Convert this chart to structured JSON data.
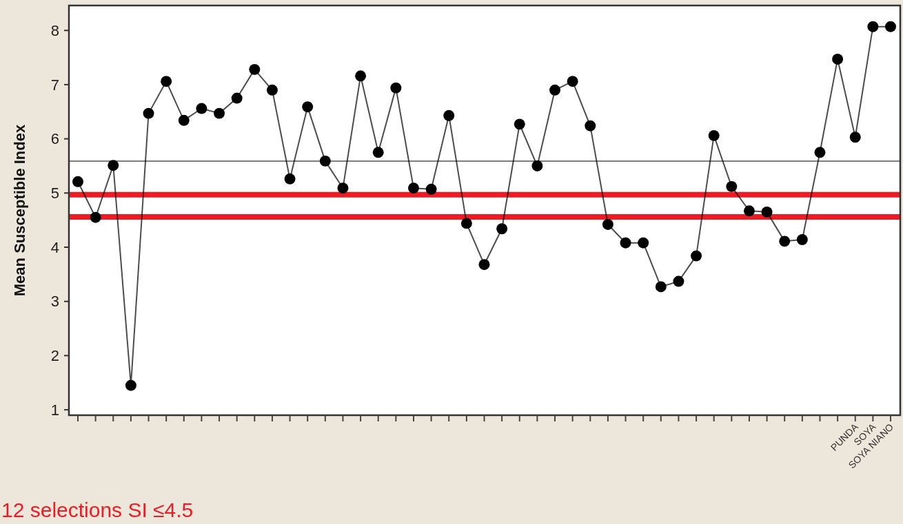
{
  "chart_data": {
    "type": "line",
    "ylabel": "Mean Susceptible Index",
    "categories": [
      null,
      null,
      null,
      null,
      null,
      null,
      null,
      null,
      null,
      null,
      null,
      null,
      null,
      null,
      null,
      null,
      null,
      null,
      null,
      null,
      null,
      null,
      null,
      null,
      null,
      null,
      null,
      null,
      null,
      null,
      null,
      null,
      null,
      null,
      null,
      null,
      null,
      null,
      null,
      null,
      null,
      null,
      null,
      null,
      "PUNDA",
      "SOYA",
      "SOYA NIANO"
    ],
    "series": [
      {
        "color": "#000000",
        "values": [
          5.21,
          4.55,
          5.51,
          1.45,
          6.47,
          7.06,
          6.34,
          6.56,
          6.47,
          6.75,
          7.28,
          6.9,
          5.26,
          6.59,
          5.59,
          5.09,
          7.16,
          5.75,
          6.94,
          5.09,
          5.07,
          6.43,
          4.44,
          3.68,
          4.34,
          6.27,
          5.5,
          6.9,
          7.06,
          6.24,
          4.42,
          4.08,
          4.08,
          3.27,
          3.37,
          3.84,
          6.06,
          5.12,
          4.67,
          4.65,
          4.11,
          4.14,
          5.75,
          7.47,
          6.03,
          8.07,
          8.07
        ]
      }
    ],
    "ylim": [
      0.9,
      8.46
    ],
    "yticks": [
      1,
      2,
      3,
      4,
      5,
      6,
      7,
      8
    ],
    "marker": "circle",
    "line_style": "solid",
    "ref_lines": [
      {
        "axis": "y",
        "value": 5.59,
        "color": "#7f7f7f"
      },
      {
        "axis": "y",
        "value": 4.97,
        "color": "#ed1c24"
      },
      {
        "axis": "y",
        "value": 4.56,
        "color": "#ed1c24"
      }
    ],
    "annotations": [
      "12 selections SI ≤4.5"
    ]
  }
}
